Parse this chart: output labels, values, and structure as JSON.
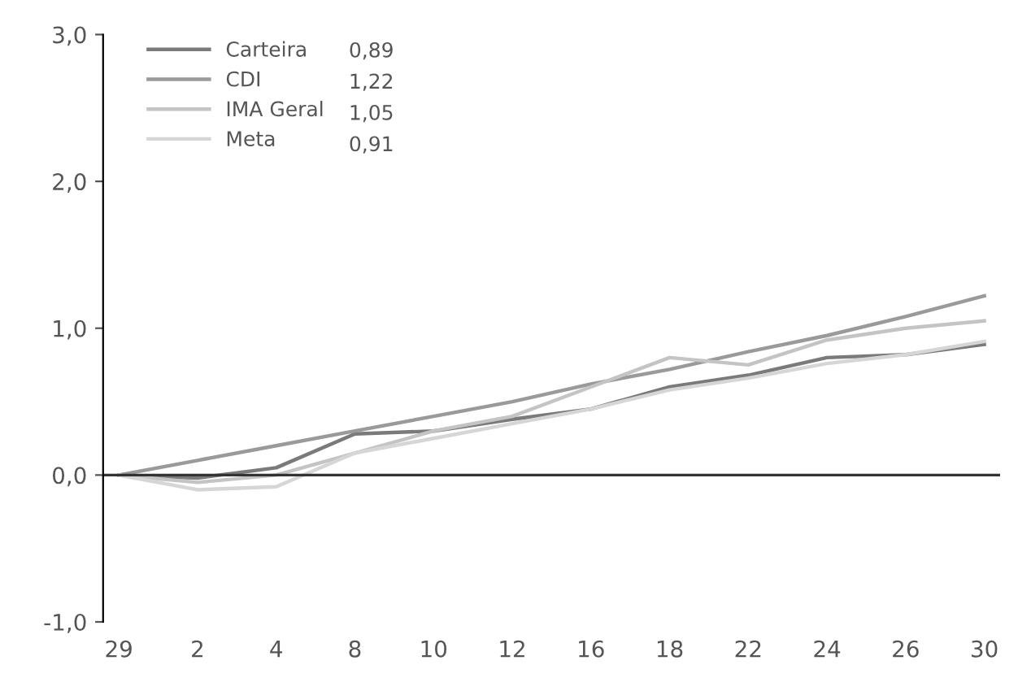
{
  "chart_data": {
    "type": "line",
    "categories": [
      "29",
      "2",
      "4",
      "8",
      "10",
      "12",
      "16",
      "18",
      "22",
      "24",
      "26",
      "30"
    ],
    "series": [
      {
        "name": "Carteira",
        "color": "#7a7a7a",
        "values": [
          0,
          -0.02,
          0.05,
          0.28,
          0.3,
          0.38,
          0.45,
          0.6,
          0.68,
          0.8,
          0.82,
          0.89
        ]
      },
      {
        "name": "CDI",
        "color": "#9a9a9a",
        "values": [
          0,
          0.1,
          0.2,
          0.3,
          0.4,
          0.5,
          0.62,
          0.72,
          0.84,
          0.95,
          1.08,
          1.22
        ]
      },
      {
        "name": "IMA Geral",
        "color": "#c4c4c4",
        "values": [
          0,
          -0.05,
          0,
          0.15,
          0.3,
          0.4,
          0.6,
          0.8,
          0.75,
          0.92,
          1.0,
          1.05
        ]
      },
      {
        "name": "Meta",
        "color": "#d6d6d6",
        "values": [
          0,
          -0.1,
          -0.08,
          0.15,
          0.25,
          0.35,
          0.45,
          0.58,
          0.66,
          0.76,
          0.82,
          0.91
        ]
      }
    ],
    "annotations": [
      "0,89",
      "1,22",
      "1,05",
      "0,91"
    ],
    "ylim": [
      -1,
      3
    ],
    "yticks": [
      {
        "value": -1,
        "label": "-1,0"
      },
      {
        "value": 0,
        "label": "0,0"
      },
      {
        "value": 1,
        "label": "1,0"
      },
      {
        "value": 2,
        "label": "2,0"
      },
      {
        "value": 3,
        "label": "3,0"
      }
    ],
    "ref_lines": [
      {
        "axis": "y",
        "value": 0,
        "color": "#333333"
      }
    ],
    "legend": "top left",
    "grid": false,
    "marker": "none",
    "line_style": "solid"
  }
}
